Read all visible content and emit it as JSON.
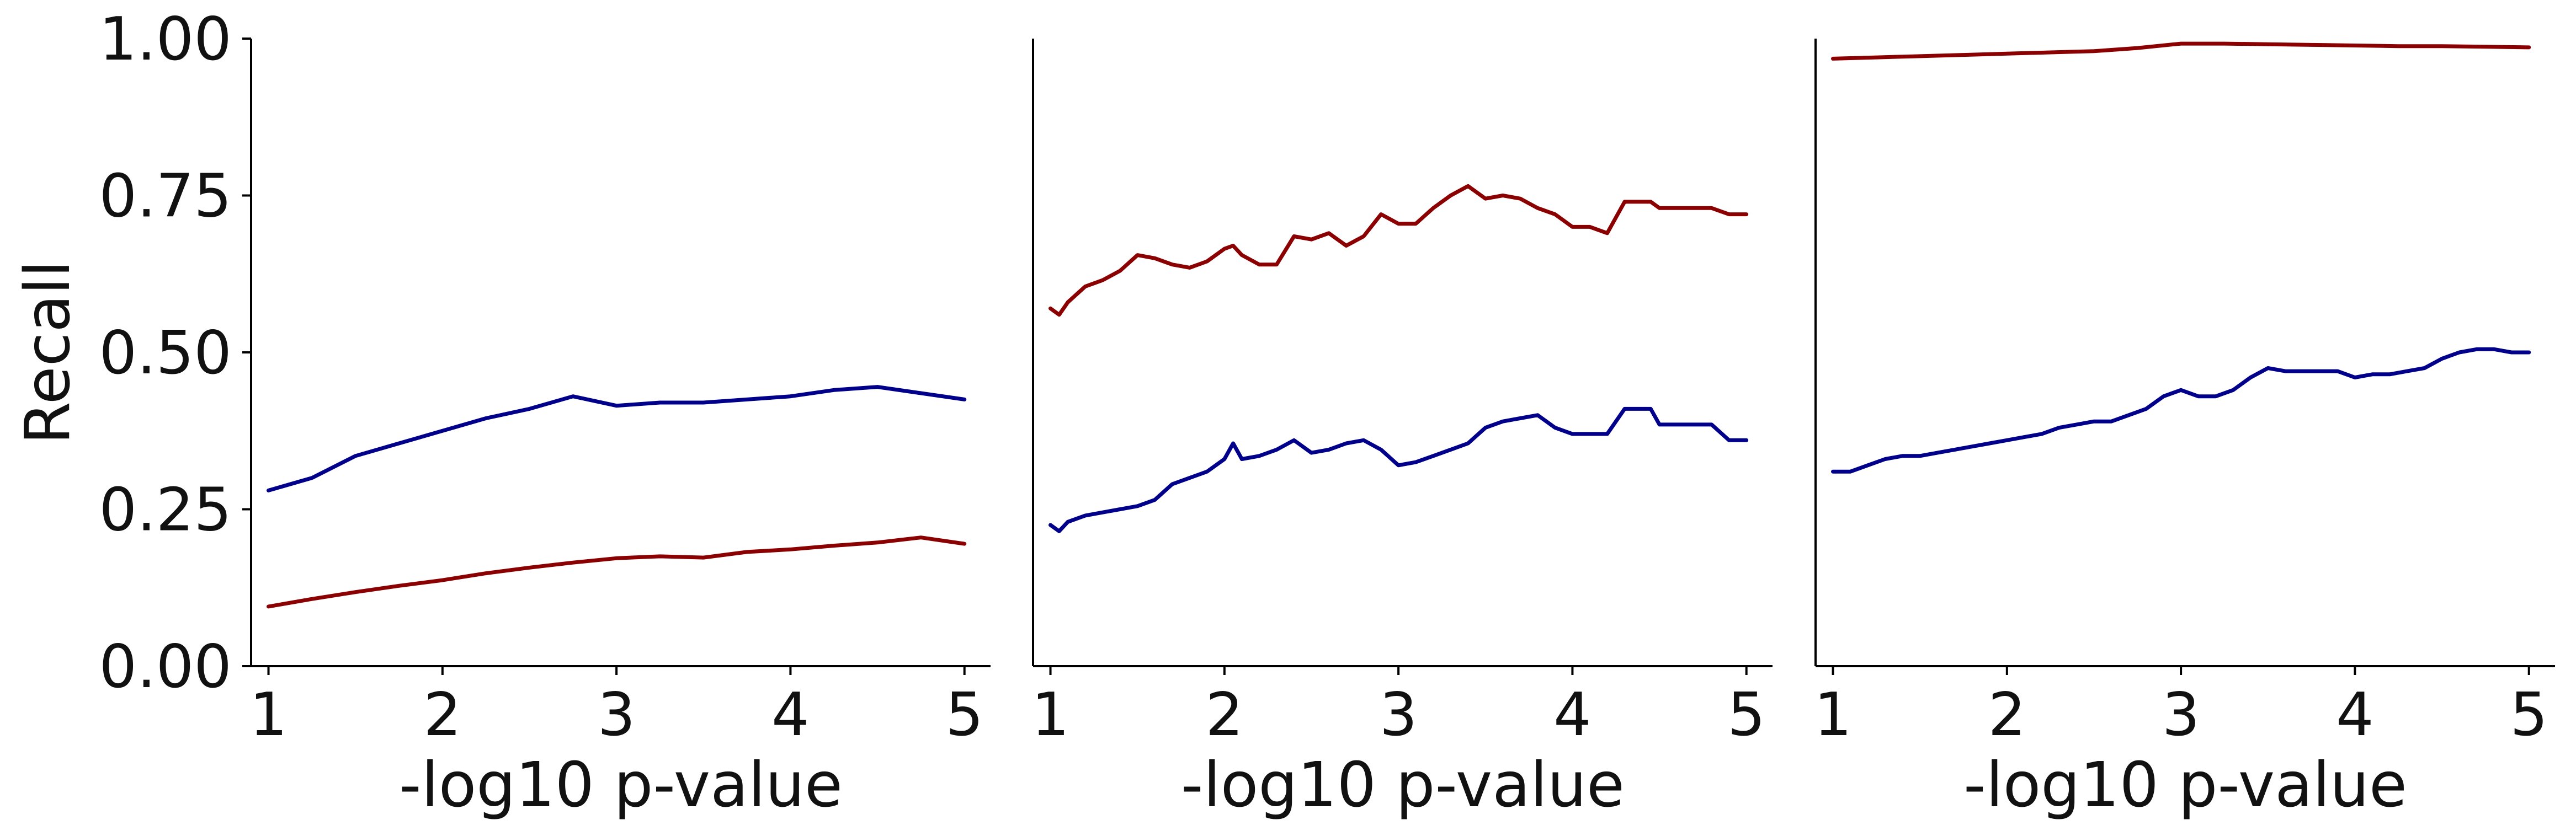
{
  "chart_data": [
    {
      "type": "line",
      "title": "",
      "xlabel": "-log10 p-value",
      "ylabel": "Recall",
      "xlim": [
        0.9,
        5.15
      ],
      "ylim": [
        0.0,
        1.0
      ],
      "xticks": [
        "1",
        "2",
        "3",
        "4",
        "5"
      ],
      "yticks": [
        "0.00",
        "0.25",
        "0.50",
        "0.75",
        "1.00"
      ],
      "grid": false,
      "colors": {
        "navy": "#00008b",
        "darkred": "#8b0000"
      },
      "series": [
        {
          "color": "#00008b",
          "x": [
            1.0,
            1.25,
            1.5,
            1.75,
            2.0,
            2.25,
            2.5,
            2.75,
            3.0,
            3.25,
            3.5,
            3.75,
            4.0,
            4.25,
            4.5,
            4.75,
            5.0
          ],
          "y": [
            0.28,
            0.3,
            0.335,
            0.355,
            0.375,
            0.395,
            0.41,
            0.43,
            0.415,
            0.42,
            0.42,
            0.425,
            0.43,
            0.44,
            0.445,
            0.435,
            0.425
          ]
        },
        {
          "color": "#8b0000",
          "x": [
            1.0,
            1.25,
            1.5,
            1.75,
            2.0,
            2.25,
            2.5,
            2.75,
            3.0,
            3.25,
            3.5,
            3.75,
            4.0,
            4.25,
            4.5,
            4.75,
            5.0
          ],
          "y": [
            0.095,
            0.107,
            0.118,
            0.128,
            0.137,
            0.148,
            0.157,
            0.165,
            0.172,
            0.175,
            0.173,
            0.182,
            0.186,
            0.192,
            0.197,
            0.205,
            0.195
          ]
        }
      ]
    },
    {
      "type": "line",
      "title": "",
      "xlabel": "-log10 p-value",
      "ylabel": "",
      "xlim": [
        0.9,
        5.15
      ],
      "ylim": [
        0.0,
        1.0
      ],
      "xticks": [
        "1",
        "2",
        "3",
        "4",
        "5"
      ],
      "yticks": [],
      "grid": false,
      "series": [
        {
          "color": "#8b0000",
          "x": [
            1.0,
            1.05,
            1.1,
            1.2,
            1.3,
            1.4,
            1.5,
            1.6,
            1.7,
            1.8,
            1.9,
            2.0,
            2.05,
            2.1,
            2.2,
            2.3,
            2.4,
            2.5,
            2.6,
            2.7,
            2.8,
            2.9,
            3.0,
            3.1,
            3.2,
            3.3,
            3.4,
            3.5,
            3.6,
            3.7,
            3.8,
            3.9,
            4.0,
            4.1,
            4.2,
            4.3,
            4.45,
            4.5,
            4.6,
            4.7,
            4.8,
            4.9,
            5.0
          ],
          "y": [
            0.57,
            0.56,
            0.58,
            0.605,
            0.615,
            0.63,
            0.655,
            0.65,
            0.64,
            0.635,
            0.645,
            0.665,
            0.67,
            0.655,
            0.64,
            0.64,
            0.685,
            0.68,
            0.69,
            0.67,
            0.685,
            0.72,
            0.705,
            0.705,
            0.73,
            0.75,
            0.765,
            0.745,
            0.75,
            0.745,
            0.73,
            0.72,
            0.7,
            0.7,
            0.69,
            0.74,
            0.74,
            0.73,
            0.73,
            0.73,
            0.73,
            0.72,
            0.72
          ]
        },
        {
          "color": "#00008b",
          "x": [
            1.0,
            1.05,
            1.1,
            1.2,
            1.3,
            1.4,
            1.5,
            1.6,
            1.7,
            1.8,
            1.9,
            2.0,
            2.05,
            2.1,
            2.2,
            2.3,
            2.4,
            2.5,
            2.6,
            2.7,
            2.8,
            2.9,
            3.0,
            3.1,
            3.2,
            3.3,
            3.4,
            3.5,
            3.6,
            3.7,
            3.8,
            3.9,
            4.0,
            4.1,
            4.2,
            4.3,
            4.45,
            4.5,
            4.6,
            4.7,
            4.8,
            4.9,
            5.0
          ],
          "y": [
            0.225,
            0.215,
            0.23,
            0.24,
            0.245,
            0.25,
            0.255,
            0.265,
            0.29,
            0.3,
            0.31,
            0.33,
            0.355,
            0.33,
            0.335,
            0.345,
            0.36,
            0.34,
            0.345,
            0.355,
            0.36,
            0.345,
            0.32,
            0.325,
            0.335,
            0.345,
            0.355,
            0.38,
            0.39,
            0.395,
            0.4,
            0.38,
            0.37,
            0.37,
            0.37,
            0.41,
            0.41,
            0.385,
            0.385,
            0.385,
            0.385,
            0.36,
            0.36
          ]
        }
      ]
    },
    {
      "type": "line",
      "title": "",
      "xlabel": "-log10 p-value",
      "ylabel": "",
      "xlim": [
        0.9,
        5.15
      ],
      "ylim": [
        0.0,
        1.0
      ],
      "xticks": [
        "1",
        "2",
        "3",
        "4",
        "5"
      ],
      "yticks": [],
      "grid": false,
      "series": [
        {
          "color": "#8b0000",
          "x": [
            1.0,
            1.25,
            1.5,
            1.75,
            2.0,
            2.25,
            2.5,
            2.75,
            3.0,
            3.25,
            3.5,
            3.75,
            4.0,
            4.25,
            4.5,
            4.75,
            5.0
          ],
          "y": [
            0.968,
            0.97,
            0.972,
            0.974,
            0.976,
            0.978,
            0.98,
            0.985,
            0.992,
            0.992,
            0.991,
            0.99,
            0.989,
            0.988,
            0.988,
            0.987,
            0.986
          ]
        },
        {
          "color": "#00008b",
          "x": [
            1.0,
            1.1,
            1.2,
            1.3,
            1.4,
            1.5,
            1.6,
            1.7,
            1.8,
            1.9,
            2.0,
            2.1,
            2.2,
            2.3,
            2.4,
            2.5,
            2.6,
            2.7,
            2.8,
            2.9,
            3.0,
            3.1,
            3.2,
            3.3,
            3.4,
            3.5,
            3.6,
            3.7,
            3.8,
            3.9,
            4.0,
            4.1,
            4.2,
            4.3,
            4.4,
            4.5,
            4.6,
            4.7,
            4.8,
            4.9,
            5.0
          ],
          "y": [
            0.31,
            0.31,
            0.32,
            0.33,
            0.335,
            0.335,
            0.34,
            0.345,
            0.35,
            0.355,
            0.36,
            0.365,
            0.37,
            0.38,
            0.385,
            0.39,
            0.39,
            0.4,
            0.41,
            0.43,
            0.44,
            0.43,
            0.43,
            0.44,
            0.46,
            0.475,
            0.47,
            0.47,
            0.47,
            0.47,
            0.46,
            0.465,
            0.465,
            0.47,
            0.475,
            0.49,
            0.5,
            0.505,
            0.505,
            0.5,
            0.5
          ]
        }
      ]
    }
  ]
}
